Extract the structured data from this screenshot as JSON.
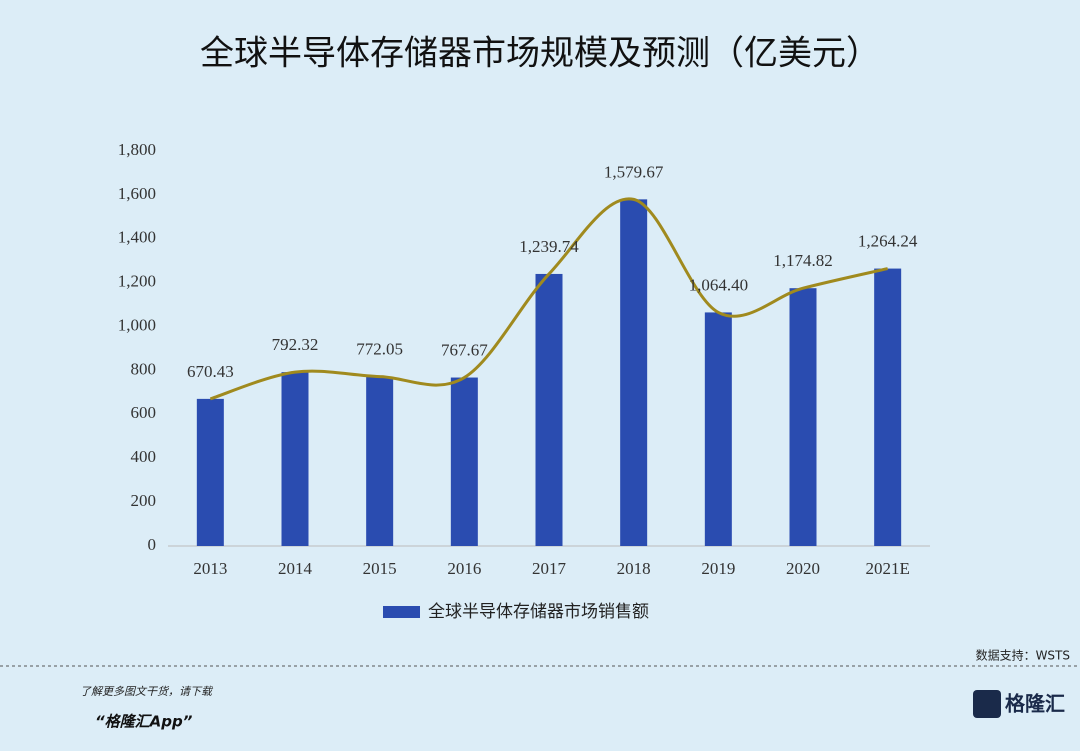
{
  "chart_data": {
    "type": "bar",
    "title": "全球半导体存储器市场规模及预测（亿美元）",
    "categories": [
      "2013",
      "2014",
      "2015",
      "2016",
      "2017",
      "2018",
      "2019",
      "2020",
      "2021E"
    ],
    "series": [
      {
        "name": "全球半导体存储器市场销售额",
        "color": "#2a4cb0",
        "values": [
          670.43,
          792.32,
          772.05,
          767.67,
          1239.74,
          1579.67,
          1064.4,
          1174.82,
          1264.24
        ],
        "value_labels": [
          "670.43",
          "792.32",
          "772.05",
          "767.67",
          "1,239.74",
          "1,579.67",
          "1,064.40",
          "1,174.82",
          "1,264.24"
        ]
      }
    ],
    "trend_color": "#a08a1e",
    "ylim": [
      0,
      1800
    ],
    "yticks": [
      0,
      200,
      400,
      600,
      800,
      {
        "value": 1000,
        "label": "1,000"
      },
      {
        "value": 1200,
        "label": "1,200"
      },
      {
        "value": 1400,
        "label": "1,400"
      },
      {
        "value": 1600,
        "label": "1,600"
      },
      {
        "value": 1800,
        "label": "1,800"
      }
    ],
    "legend": "bottom"
  },
  "source": "数据支持：WSTS",
  "footer": {
    "line1": "了解更多图文干货，请下载",
    "line2": "“格隆汇App”",
    "logo": "格隆汇"
  }
}
